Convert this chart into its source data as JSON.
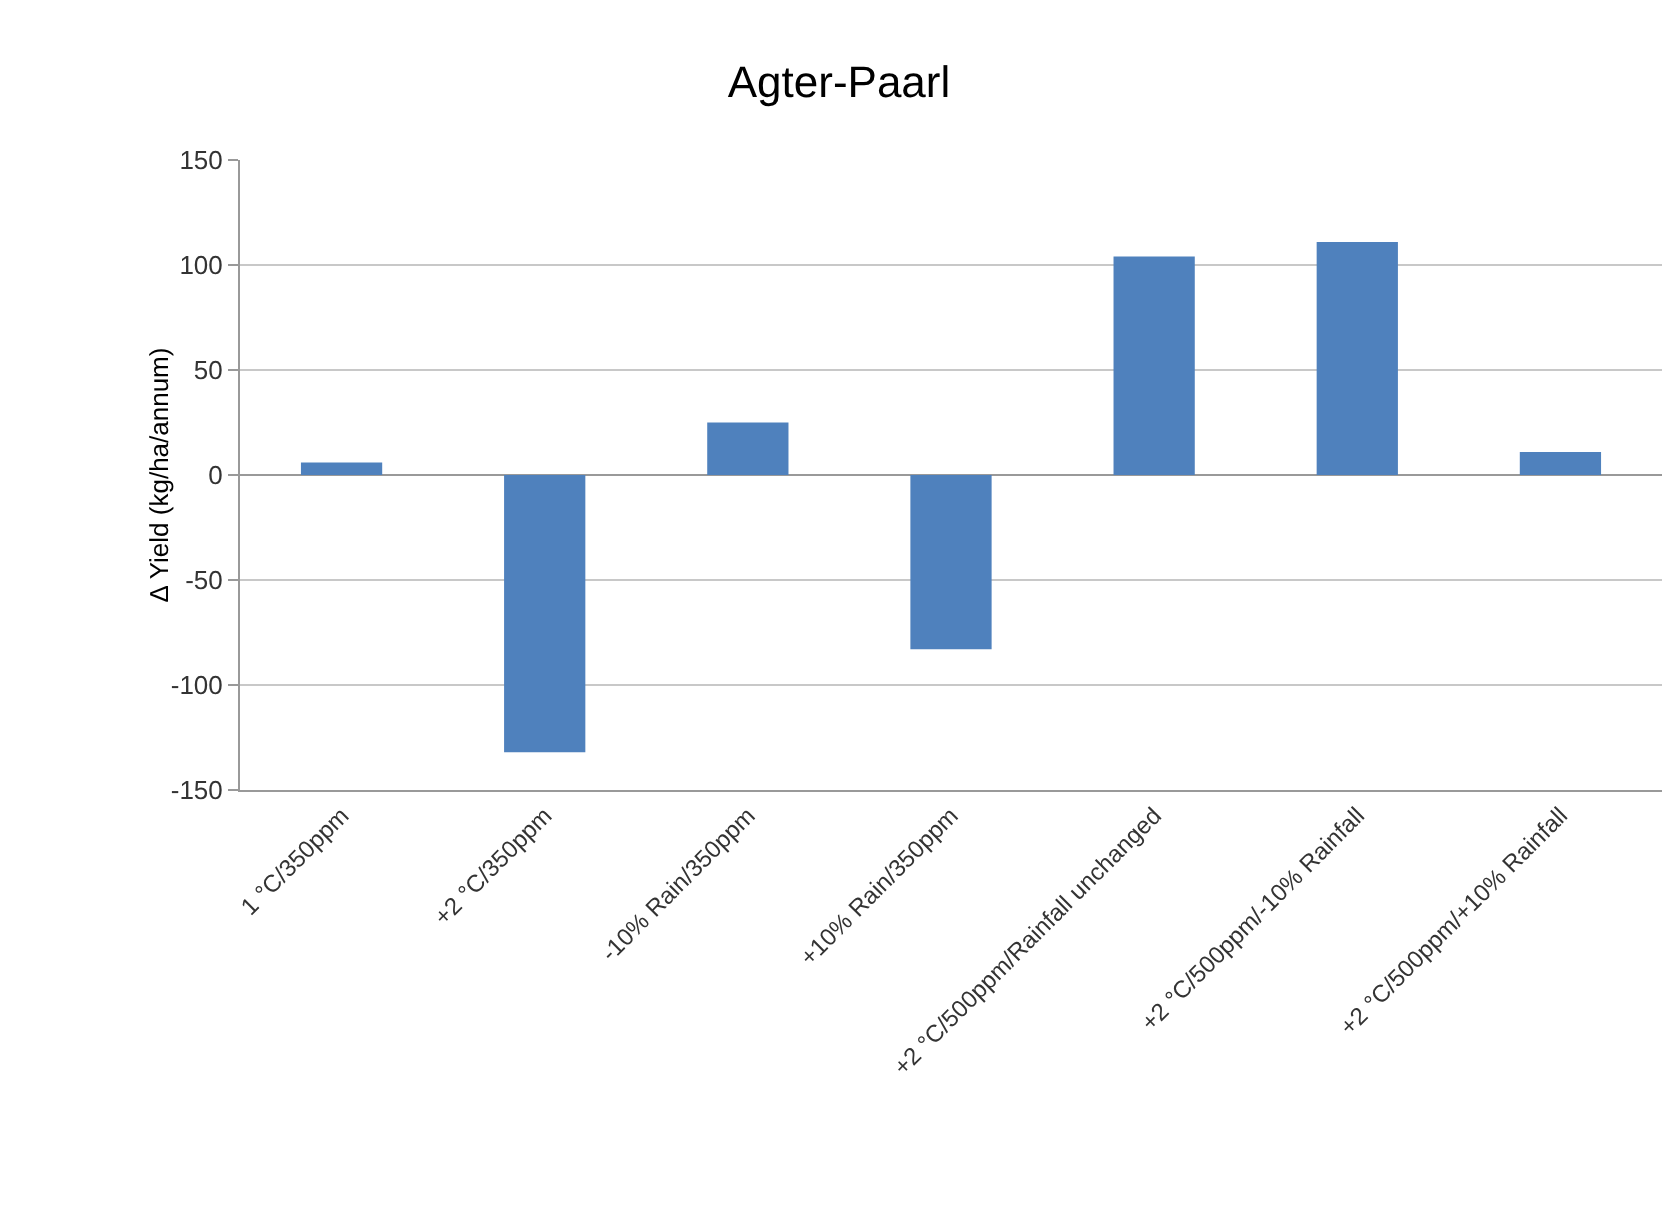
{
  "chart_data": {
    "type": "bar",
    "title": "Agter-Paarl",
    "ylabel": "Δ Yield (kg/ha/annum)",
    "categories": [
      "1 °C/350ppm",
      "+2 °C/350ppm",
      "-10% Rain/350ppm",
      "+10% Rain/350ppm",
      "+2 °C/500ppm/Rainfall unchanged",
      "+2 °C/500ppm/-10% Rainfall",
      "+2 °C/500ppm/+10% Rainfall"
    ],
    "values": [
      6,
      -132,
      25,
      -83,
      104,
      111,
      11
    ],
    "color": "#4f81bd",
    "ylim": [
      -150,
      150
    ],
    "yticks": [
      -150,
      -100,
      -50,
      0,
      50,
      100,
      150
    ],
    "grid": "y"
  }
}
